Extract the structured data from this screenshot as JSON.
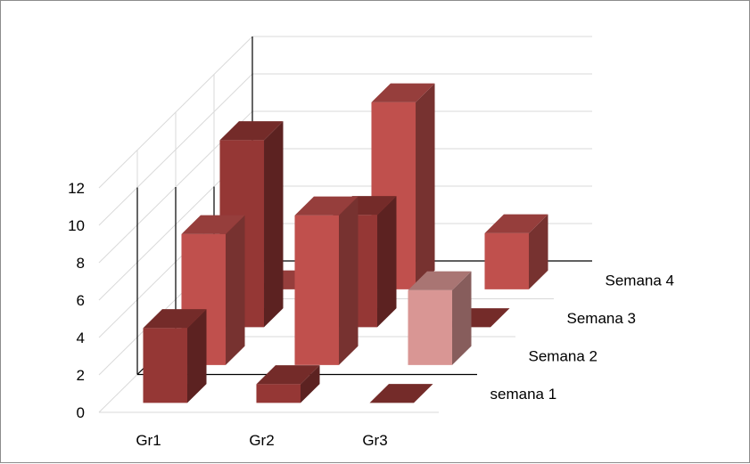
{
  "chart_data": {
    "type": "bar",
    "categories": [
      "Gr1",
      "Gr2",
      "Gr3"
    ],
    "series": [
      {
        "name": "semana 1",
        "values": [
          4,
          1,
          0
        ]
      },
      {
        "name": "Semana 2",
        "values": [
          7,
          8,
          4
        ]
      },
      {
        "name": "Semana 3",
        "values": [
          10,
          6,
          0
        ]
      },
      {
        "name": "Semana 4",
        "values": [
          0,
          10,
          3
        ]
      }
    ],
    "ylim": [
      0,
      12
    ],
    "yticks": [
      "0",
      "2",
      "4",
      "6",
      "8",
      "10",
      "12"
    ],
    "grid": true,
    "style": "3d",
    "colors": {
      "semana 1": "#953735",
      "Semana 2": "#c0504d",
      "Semana 3": "#953735",
      "Semana 4": "#c0504d",
      "Semana 2 Gr3": "#d99694"
    }
  }
}
